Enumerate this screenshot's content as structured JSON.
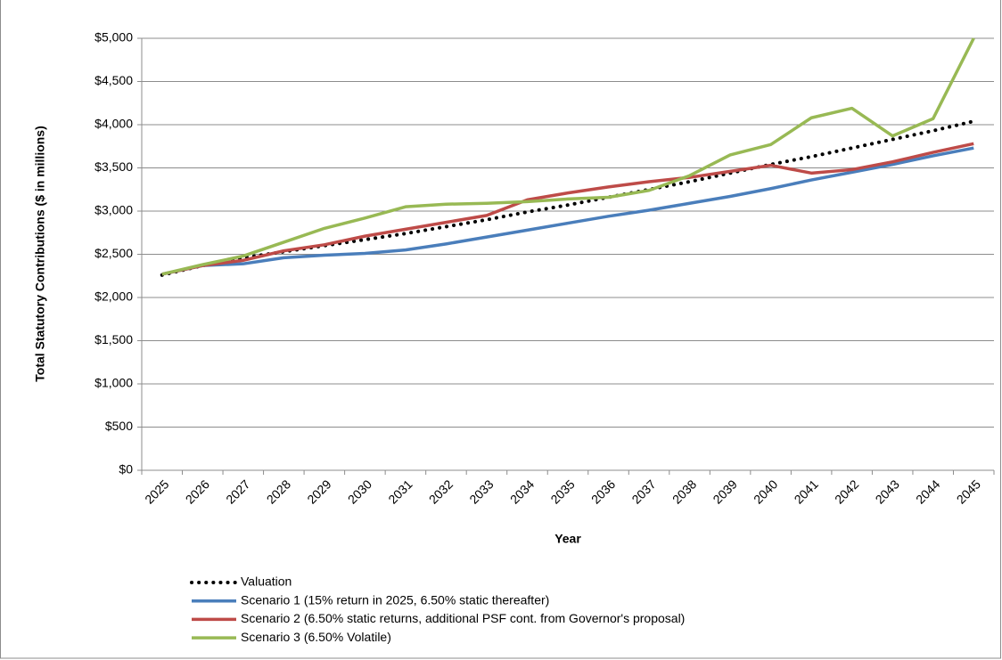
{
  "chart_data": {
    "type": "line",
    "xlabel": "Year",
    "ylabel": "Total Statutory Contributions ($ in millions)",
    "categories": [
      "2025",
      "2026",
      "2027",
      "2028",
      "2029",
      "2030",
      "2031",
      "2032",
      "2033",
      "2034",
      "2035",
      "2036",
      "2037",
      "2038",
      "2039",
      "2040",
      "2041",
      "2042",
      "2043",
      "2044",
      "2045"
    ],
    "series": [
      {
        "name": "Valuation",
        "color": "#000000",
        "dashed": true,
        "values": [
          2260,
          2370,
          2460,
          2530,
          2600,
          2670,
          2740,
          2820,
          2900,
          2990,
          3070,
          3160,
          3250,
          3340,
          3440,
          3540,
          3630,
          3730,
          3830,
          3930,
          4040
        ]
      },
      {
        "name": "Scenario 1 (15% return in 2025, 6.50% static thereafter)",
        "color": "#4a7ebb",
        "values": [
          2270,
          2370,
          2390,
          2460,
          2490,
          2510,
          2550,
          2620,
          2700,
          2780,
          2860,
          2940,
          3010,
          3090,
          3170,
          3260,
          3360,
          3450,
          3540,
          3640,
          3730
        ]
      },
      {
        "name": "Scenario 2 (6.50% static returns, additional PSF cont. from Governor's proposal)",
        "color": "#be4b48",
        "values": [
          2270,
          2370,
          2430,
          2540,
          2610,
          2710,
          2790,
          2870,
          2950,
          3130,
          3210,
          3280,
          3340,
          3390,
          3460,
          3530,
          3440,
          3480,
          3570,
          3680,
          3780
        ]
      },
      {
        "name": "Scenario 3 (6.50% Volatile)",
        "color": "#98b954",
        "values": [
          2270,
          2380,
          2480,
          2640,
          2800,
          2920,
          3050,
          3080,
          3090,
          3110,
          3140,
          3160,
          3240,
          3410,
          3650,
          3770,
          4080,
          4190,
          3870,
          4070,
          5000
        ]
      }
    ],
    "ylim": [
      0,
      5000
    ],
    "yticks": [
      {
        "value": 0,
        "label": "$0"
      },
      {
        "value": 500,
        "label": "$500"
      },
      {
        "value": 1000,
        "label": "$1,000"
      },
      {
        "value": 1500,
        "label": "$1,500"
      },
      {
        "value": 2000,
        "label": "$2,000"
      },
      {
        "value": 2500,
        "label": "$2,500"
      },
      {
        "value": 3000,
        "label": "$3,000"
      },
      {
        "value": 3500,
        "label": "$3,500"
      },
      {
        "value": 4000,
        "label": "$4,000"
      },
      {
        "value": 4500,
        "label": "$4,500"
      },
      {
        "value": 5000,
        "label": "$5,000"
      }
    ],
    "grid": true
  }
}
